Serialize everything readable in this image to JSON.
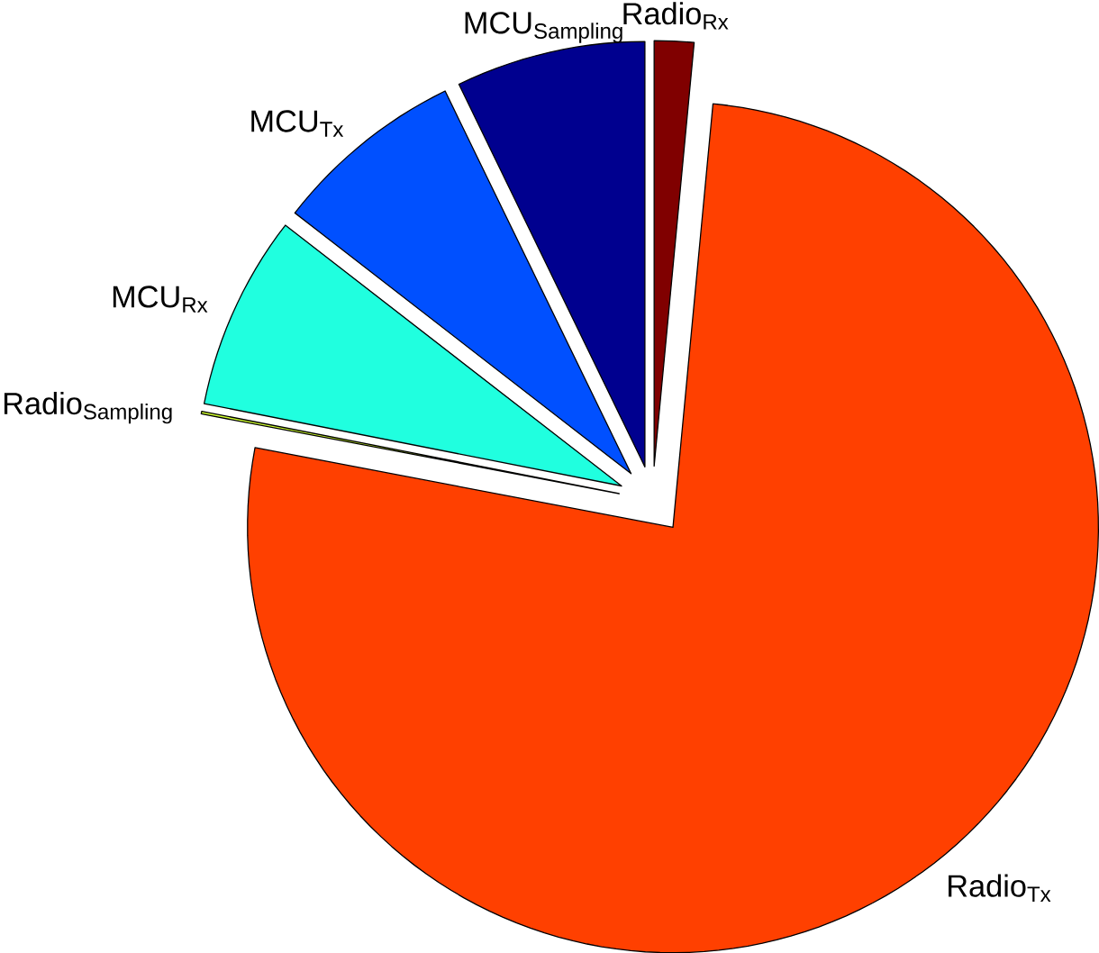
{
  "chart_data": {
    "type": "pie",
    "categories": [
      "Radio$_{Rx}$",
      "Radio$_{Tx}$",
      "Radio$_{Sampling}$",
      "MCU$_{Rx}$",
      "MCU$_{Tx}$",
      "MCU$_{Sampling}$"
    ],
    "values": [
      1.5,
      76.5,
      0.1,
      7.4,
      7.3,
      7.2
    ],
    "colors": [
      "#800000",
      "#ff4000",
      "#d0ff30",
      "#20ffdf",
      "#0050ff",
      "#00008f"
    ]
  }
}
